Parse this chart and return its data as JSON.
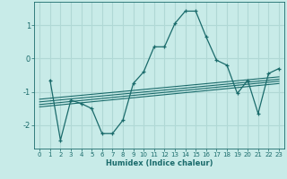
{
  "xlabel": "Humidex (Indice chaleur)",
  "bg_color": "#c8ebe8",
  "grid_color": "#b0d8d5",
  "line_color": "#1a6b6b",
  "xlim": [
    -0.5,
    23.5
  ],
  "ylim": [
    -2.7,
    1.7
  ],
  "yticks": [
    -2,
    -1,
    0,
    1
  ],
  "xticks": [
    0,
    1,
    2,
    3,
    4,
    5,
    6,
    7,
    8,
    9,
    10,
    11,
    12,
    13,
    14,
    15,
    16,
    17,
    18,
    19,
    20,
    21,
    22,
    23
  ],
  "main_curve": [
    [
      1,
      -0.65
    ],
    [
      2,
      -2.45
    ],
    [
      3,
      -1.25
    ],
    [
      4,
      -1.35
    ],
    [
      5,
      -1.5
    ],
    [
      6,
      -2.25
    ],
    [
      7,
      -2.25
    ],
    [
      8,
      -1.85
    ],
    [
      9,
      -0.75
    ],
    [
      10,
      -0.4
    ],
    [
      11,
      0.35
    ],
    [
      12,
      0.35
    ],
    [
      13,
      1.05
    ],
    [
      14,
      1.42
    ],
    [
      15,
      1.42
    ],
    [
      16,
      0.65
    ],
    [
      17,
      -0.05
    ],
    [
      18,
      -0.2
    ],
    [
      19,
      -1.05
    ],
    [
      20,
      -0.65
    ],
    [
      21,
      -1.65
    ],
    [
      22,
      -0.45
    ],
    [
      23,
      -0.3
    ]
  ],
  "regression_lines": [
    {
      "x": [
        0,
        23
      ],
      "y": [
        -1.22,
        -0.55
      ]
    },
    {
      "x": [
        0,
        23
      ],
      "y": [
        -1.3,
        -0.62
      ]
    },
    {
      "x": [
        0,
        23
      ],
      "y": [
        -1.38,
        -0.68
      ]
    },
    {
      "x": [
        0,
        23
      ],
      "y": [
        -1.45,
        -0.75
      ]
    }
  ]
}
